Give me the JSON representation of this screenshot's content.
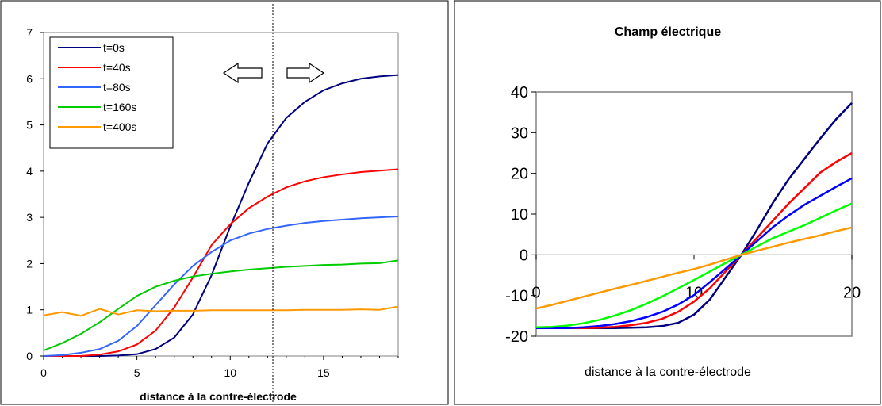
{
  "chart_data": [
    {
      "type": "line",
      "title": "",
      "xlabel": "distance à la contre-électrode",
      "ylabel": "",
      "xlim": [
        0,
        19
      ],
      "ylim": [
        0,
        7
      ],
      "x_ticks": [
        "0",
        "5",
        "10",
        "15"
      ],
      "y_ticks": [
        "0",
        "1",
        "2",
        "3",
        "4",
        "5",
        "6",
        "7"
      ],
      "grid": false,
      "legend": "top-left",
      "x": [
        0,
        1,
        2,
        3,
        4,
        5,
        6,
        7,
        8,
        9,
        10,
        11,
        12,
        13,
        14,
        15,
        16,
        17,
        18,
        19
      ],
      "series": [
        {
          "name": "t=0s",
          "color": "#000080",
          "values": [
            0,
            0,
            0,
            0,
            0.01,
            0.04,
            0.15,
            0.4,
            0.9,
            1.75,
            2.8,
            3.75,
            4.6,
            5.15,
            5.5,
            5.75,
            5.9,
            6.0,
            6.05,
            6.08
          ]
        },
        {
          "name": "t=40s",
          "color": "#ff0000",
          "values": [
            0,
            0,
            0,
            0.03,
            0.1,
            0.25,
            0.55,
            1.05,
            1.7,
            2.4,
            2.85,
            3.2,
            3.45,
            3.65,
            3.78,
            3.87,
            3.93,
            3.98,
            4.01,
            4.04
          ]
        },
        {
          "name": "t=80s",
          "color": "#3366ff",
          "values": [
            0,
            0.02,
            0.07,
            0.15,
            0.33,
            0.65,
            1.1,
            1.55,
            1.95,
            2.25,
            2.5,
            2.65,
            2.75,
            2.82,
            2.88,
            2.92,
            2.95,
            2.98,
            3.0,
            3.02
          ]
        },
        {
          "name": "t=160s",
          "color": "#00cc00",
          "values": [
            0.12,
            0.28,
            0.48,
            0.73,
            1.02,
            1.3,
            1.5,
            1.63,
            1.72,
            1.78,
            1.83,
            1.87,
            1.9,
            1.93,
            1.95,
            1.97,
            1.98,
            2.0,
            2.01,
            2.07
          ]
        },
        {
          "name": "t=400s",
          "color": "#ff9900",
          "values": [
            0.88,
            0.95,
            0.87,
            1.02,
            0.9,
            0.99,
            0.97,
            0.98,
            0.98,
            0.99,
            0.99,
            0.99,
            0.99,
            0.99,
            1.0,
            1.0,
            1.0,
            1.01,
            1.0,
            1.07
          ]
        }
      ],
      "annotations": {
        "vertical_line_x": 12.3,
        "arrows": [
          "left-arrow",
          "right-arrow"
        ]
      }
    },
    {
      "type": "line",
      "title": "Champ électrique",
      "xlabel": "distance à la contre-électrode",
      "ylabel": "",
      "xlim": [
        0,
        20
      ],
      "ylim": [
        -20,
        40
      ],
      "x_ticks": [
        "0",
        "10",
        "20"
      ],
      "y_ticks": [
        "-20",
        "-10",
        "0",
        "10",
        "20",
        "30",
        "40"
      ],
      "grid": false,
      "x": [
        0,
        1,
        2,
        3,
        4,
        5,
        6,
        7,
        8,
        9,
        10,
        11,
        12,
        13,
        14,
        15,
        16,
        17,
        18,
        19,
        20
      ],
      "series": [
        {
          "color": "#000080",
          "values": [
            -18,
            -18,
            -18,
            -18,
            -18,
            -18,
            -17.9,
            -17.8,
            -17.5,
            -16.7,
            -14.7,
            -11,
            -5.5,
            0,
            6.2,
            12.8,
            18.6,
            23.6,
            28.6,
            33.3,
            37.3
          ]
        },
        {
          "color": "#ff0000",
          "values": [
            -18,
            -18,
            -18,
            -18,
            -17.9,
            -17.7,
            -17.3,
            -16.7,
            -15.7,
            -14,
            -11.5,
            -8.2,
            -4.1,
            0,
            4.2,
            8.4,
            12.6,
            16.4,
            20.2,
            22.8,
            25
          ]
        },
        {
          "color": "#0000ff",
          "values": [
            -18,
            -18,
            -18,
            -17.8,
            -17.5,
            -17,
            -16.3,
            -15.3,
            -14,
            -12.2,
            -9.9,
            -6.7,
            -3.4,
            0,
            3.4,
            6.8,
            9.7,
            12.3,
            14.5,
            16.7,
            18.8
          ]
        },
        {
          "color": "#00ff00",
          "values": [
            -17.8,
            -17.7,
            -17.4,
            -16.8,
            -16,
            -14.9,
            -13.6,
            -12,
            -10.2,
            -8.2,
            -6.2,
            -4.1,
            -2,
            0,
            2.1,
            4.1,
            5.7,
            7.3,
            9.1,
            10.9,
            12.6
          ]
        },
        {
          "color": "#ff9900",
          "values": [
            -13.2,
            -12.3,
            -11.3,
            -10.3,
            -9.3,
            -8.3,
            -7.4,
            -6.4,
            -5.4,
            -4.4,
            -3.5,
            -2.4,
            -1.2,
            0,
            1,
            2,
            3,
            3.9,
            4.8,
            5.8,
            6.7
          ]
        }
      ]
    }
  ]
}
